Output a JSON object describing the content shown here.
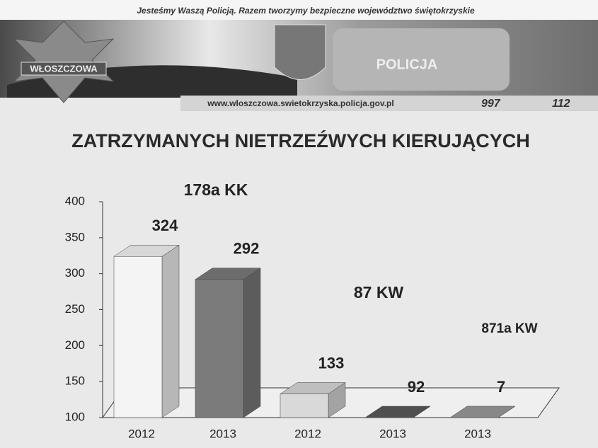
{
  "header": {
    "slogan": "Jesteśmy Waszą Policją. Razem tworzymy bezpieczne województwo świętokrzyskie",
    "badge": "WŁOSZCZOWA",
    "vehicle": "POLICJA",
    "website": "www.wloszczowa.swietokrzyska.policja.gov.pl",
    "phones": [
      "997",
      "112"
    ]
  },
  "chart_data": {
    "type": "bar3d",
    "title": "ZATRZYMANYCH NIETRZEŹWYCH KIERUJĄCYCH",
    "categories": [
      "2012",
      "2013",
      "2012",
      "2013",
      "2013"
    ],
    "values": [
      324,
      292,
      133,
      92,
      7
    ],
    "colors": [
      "#f4f4f4",
      "#7b7b7b",
      "#d9d9d9",
      "#5a5a5a",
      "#9a9a9a"
    ],
    "annotations": [
      "178a KK",
      "87 KW",
      "871a KW"
    ],
    "ylim": [
      100,
      400
    ],
    "yticks": [
      100,
      150,
      200,
      250,
      300,
      350,
      400
    ]
  }
}
